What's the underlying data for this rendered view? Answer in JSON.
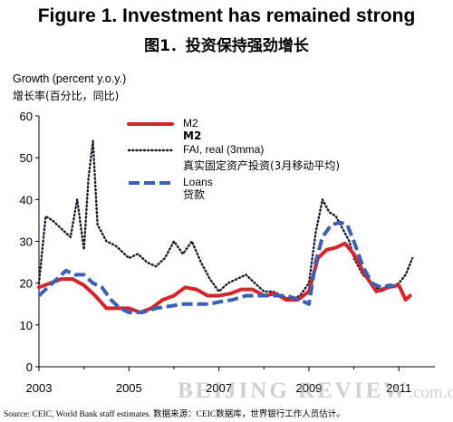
{
  "header": {
    "title": "Figure 1. Investment has remained strong",
    "subtitle": "图1．投资保持强劲增长"
  },
  "source": "Source: CEIC, World Bank staff estimates.    数据来源：CEIC数据库，世界银行工作人员估计。",
  "watermark": {
    "brand": "BEIJING REVIEW",
    "domain": ".com.cn"
  },
  "colors": {
    "m2": "#d4262a",
    "fai": "#1a1a2e",
    "loans": "#3a5fb5"
  },
  "chart_data": {
    "type": "line",
    "ylabel": "Growth (percent y.o.y.)",
    "ylabel_zh": "增长率(百分比，同比)",
    "ylim": [
      0,
      60
    ],
    "yticks": [
      "0",
      "10",
      "20",
      "30",
      "40",
      "50",
      "60"
    ],
    "xlim": [
      2003.0,
      2011.8
    ],
    "xticks": [
      {
        "x": 2003,
        "label": "2003"
      },
      {
        "x": 2005,
        "label": "2005"
      },
      {
        "x": 2007,
        "label": "2007"
      },
      {
        "x": 2009,
        "label": "2009"
      },
      {
        "x": 2011,
        "label": "2011"
      }
    ],
    "legend_placement": "top-center",
    "grid": false,
    "series": [
      {
        "name": "M2",
        "name_zh": "M2",
        "style": "solid",
        "color": "#d4262a",
        "x": [
          2003.0,
          2003.25,
          2003.5,
          2003.75,
          2004.0,
          2004.25,
          2004.5,
          2004.75,
          2005.0,
          2005.25,
          2005.5,
          2005.75,
          2006.0,
          2006.25,
          2006.5,
          2006.75,
          2007.0,
          2007.25,
          2007.5,
          2007.75,
          2008.0,
          2008.25,
          2008.5,
          2008.75,
          2009.0,
          2009.2,
          2009.4,
          2009.6,
          2009.8,
          2010.0,
          2010.25,
          2010.5,
          2010.75,
          2011.0,
          2011.15,
          2011.25
        ],
        "y": [
          19,
          20,
          21,
          21,
          19.5,
          17,
          14,
          14,
          14,
          13,
          14,
          16,
          17,
          19,
          18.5,
          17,
          17,
          17.5,
          18.5,
          18.5,
          17,
          17.5,
          16,
          16,
          18,
          26,
          28,
          28.5,
          29.5,
          27,
          22,
          18,
          19,
          19.5,
          16,
          17
        ]
      },
      {
        "name": "FAI, real (3mma)",
        "name_zh": "真实固定资产投资(3月移动平均)",
        "style": "dotted",
        "color": "#1a1a2e",
        "x": [
          2003.0,
          2003.15,
          2003.3,
          2003.5,
          2003.7,
          2003.85,
          2004.0,
          2004.1,
          2004.2,
          2004.3,
          2004.5,
          2004.7,
          2004.9,
          2005.0,
          2005.2,
          2005.4,
          2005.6,
          2005.8,
          2006.0,
          2006.2,
          2006.4,
          2006.6,
          2006.8,
          2007.0,
          2007.2,
          2007.4,
          2007.6,
          2007.8,
          2008.0,
          2008.2,
          2008.4,
          2008.6,
          2008.8,
          2009.0,
          2009.15,
          2009.3,
          2009.45,
          2009.6,
          2009.75,
          2009.9,
          2010.0,
          2010.2,
          2010.4,
          2010.6,
          2010.8,
          2011.0,
          2011.15,
          2011.3
        ],
        "y": [
          20,
          36,
          35,
          33,
          31,
          40,
          28,
          45,
          54,
          34,
          30,
          29,
          27,
          26,
          27,
          25,
          24,
          26,
          30,
          27,
          30,
          25,
          21,
          18,
          20,
          21,
          22,
          20,
          18,
          18,
          17,
          16,
          17,
          20,
          32,
          40,
          37,
          36,
          33,
          30,
          26,
          22,
          20,
          18,
          19,
          20,
          22,
          26
        ]
      },
      {
        "name": "Loans",
        "name_zh": "贷款",
        "style": "dashed",
        "color": "#3a5fb5",
        "x": [
          2003.0,
          2003.2,
          2003.4,
          2003.6,
          2003.8,
          2004.0,
          2004.2,
          2004.4,
          2004.6,
          2004.8,
          2005.0,
          2005.3,
          2005.6,
          2005.9,
          2006.2,
          2006.5,
          2006.8,
          2007.0,
          2007.3,
          2007.6,
          2007.9,
          2008.2,
          2008.5,
          2008.8,
          2009.0,
          2009.15,
          2009.3,
          2009.5,
          2009.7,
          2009.85,
          2010.0,
          2010.2,
          2010.4,
          2010.6,
          2010.8,
          2011.0
        ],
        "y": [
          17,
          19,
          21,
          23,
          22,
          22,
          20,
          19,
          16,
          14,
          13,
          13,
          14,
          14.5,
          15,
          15,
          15,
          15.5,
          16,
          17,
          17,
          17,
          17,
          16,
          15,
          25,
          31,
          34,
          34.5,
          34,
          30,
          24,
          20,
          19,
          19.5,
          19
        ]
      }
    ]
  }
}
